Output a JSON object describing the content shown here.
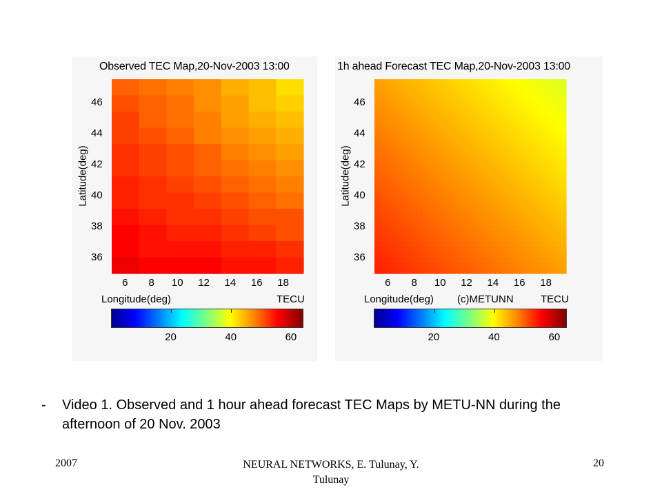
{
  "chart_data": [
    {
      "type": "heatmap",
      "title": "Observed TEC Map,20-Nov-2003 13:00",
      "xlabel": "Longitude(deg)",
      "ylabel": "Latitude(deg)",
      "xticks": [
        "6",
        "8",
        "10",
        "12",
        "14",
        "16",
        "18"
      ],
      "yticks": [
        "46",
        "44",
        "42",
        "40",
        "38",
        "36"
      ],
      "colorbar_label": "TECU",
      "colorbar_ticks": [
        "20",
        "40",
        "60"
      ],
      "colorbar_range": [
        0,
        64
      ],
      "xlim": [
        5,
        19.5
      ],
      "ylim": [
        35,
        47.5
      ],
      "grid_rows": 12,
      "grid_cols": 7,
      "values": [
        [
          50,
          49,
          48,
          47,
          45,
          44,
          42
        ],
        [
          51,
          50,
          49,
          47,
          46,
          44,
          43
        ],
        [
          52,
          50,
          49,
          48,
          46,
          45,
          44
        ],
        [
          52,
          51,
          50,
          48,
          47,
          46,
          45
        ],
        [
          53,
          52,
          51,
          50,
          48,
          47,
          46
        ],
        [
          53,
          52,
          51,
          50,
          49,
          48,
          47
        ],
        [
          54,
          53,
          52,
          51,
          50,
          49,
          48
        ],
        [
          54,
          53,
          53,
          52,
          51,
          50,
          49
        ],
        [
          55,
          54,
          53,
          53,
          52,
          51,
          51
        ],
        [
          56,
          55,
          54,
          54,
          53,
          52,
          51
        ],
        [
          56,
          55,
          55,
          55,
          54,
          54,
          53
        ],
        [
          57,
          56,
          56,
          56,
          55,
          55,
          54
        ]
      ]
    },
    {
      "type": "heatmap",
      "title": "1h ahead Forecast TEC Map,20-Nov-2003 13:00",
      "xlabel": "Longitude(deg)",
      "annotation": "(c)METUNN",
      "ylabel": "Latitude(deg)",
      "xticks": [
        "6",
        "8",
        "10",
        "12",
        "14",
        "16",
        "18"
      ],
      "yticks": [
        "46",
        "44",
        "42",
        "40",
        "38",
        "36"
      ],
      "colorbar_label": "TECU",
      "colorbar_ticks": [
        "20",
        "40",
        "60"
      ],
      "colorbar_range": [
        0,
        64
      ],
      "xlim": [
        5,
        19.5
      ],
      "ylim": [
        35,
        47.5
      ],
      "grid_rows": 36,
      "grid_cols": 36,
      "field": {
        "base": 54,
        "slope_x": -8,
        "slope_y": -8,
        "corner_min": 43
      }
    }
  ],
  "caption": {
    "dash": "-",
    "text": "Video 1. Observed and 1 hour ahead forecast TEC Maps by METU-NN during the afternoon of 20 Nov. 2003"
  },
  "footer": {
    "year": "2007",
    "authors": "NEURAL NETWORKS, E. Tulunay, Y. Tulunay",
    "page": "20"
  }
}
